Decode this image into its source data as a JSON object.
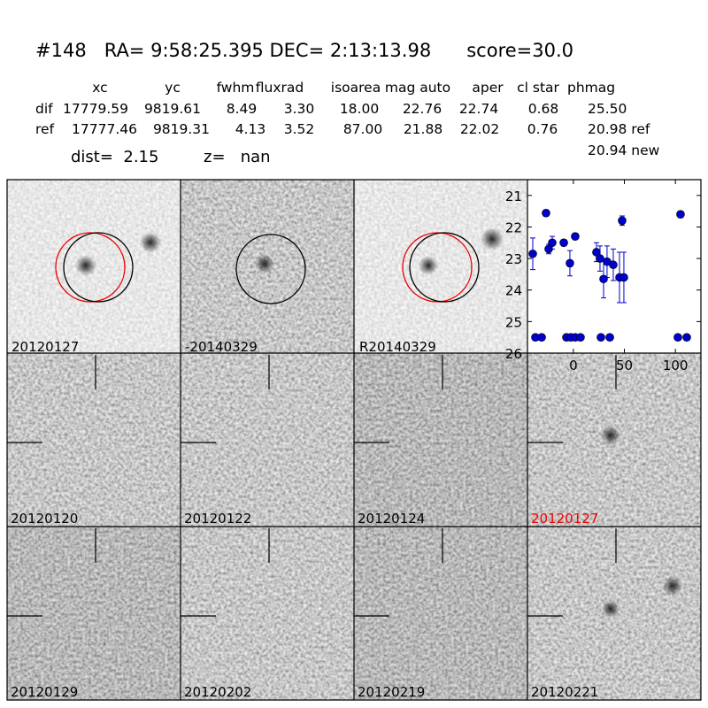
{
  "header": {
    "title": "#148   RA= 9:58:25.395 DEC= 2:13:13.98      score=30.0"
  },
  "table": {
    "columns": [
      "xc",
      "yc",
      "fwhm",
      "fluxrad",
      "isoarea",
      "mag auto",
      "aper",
      "cl star",
      "phmag"
    ],
    "rows": [
      [
        "dif",
        "17779.59",
        "9819.61",
        "8.49",
        "3.30",
        "18.00",
        "22.76",
        "22.74",
        "0.68",
        "25.50"
      ],
      [
        "ref",
        "17777.46",
        "9819.31",
        "4.13",
        "3.52",
        "87.00",
        "21.88",
        "22.02",
        "0.76",
        "20.98 ref"
      ]
    ],
    "extra": "20.94 new",
    "dist": "dist=  2.15",
    "z": "z=   nan"
  },
  "tiles": [
    "20120127",
    "-20140329",
    "R20140329",
    "20120120",
    "20120122",
    "20120124",
    "20120127",
    "20120129",
    "20120202",
    "20120219",
    "20120221"
  ],
  "chart_data": {
    "type": "scatter",
    "xlim": [
      -45,
      125
    ],
    "ylim": [
      26,
      20.5
    ],
    "xticks": [
      0,
      50,
      100
    ],
    "yticks": [
      21,
      22,
      23,
      24,
      25,
      26
    ],
    "series": [
      {
        "color": "#0000cc",
        "x": [
          -39.8,
          -26.8,
          -24.2,
          -20.7,
          -9.4,
          -3.4,
          1.8,
          22.6,
          26.1,
          29.6,
          33,
          39.1,
          45.2,
          49.5,
          47.8,
          105
        ],
        "values": [
          22.85,
          21.56,
          22.7,
          22.5,
          22.5,
          23.15,
          22.3,
          22.8,
          23.0,
          23.65,
          23.1,
          23.2,
          23.6,
          23.6,
          21.8,
          21.6
        ],
        "errors": [
          0.5,
          0.1,
          0.15,
          0.2,
          0.1,
          0.4,
          0.1,
          0.3,
          0.4,
          0.6,
          0.5,
          0.5,
          0.8,
          0.8,
          0.15,
          0.1
        ]
      },
      {
        "color": "#0000cc",
        "x": [
          -37.2,
          -31.1,
          -6.8,
          -2.6,
          1.8,
          7,
          27,
          35.7,
          102.4,
          111.1
        ],
        "values": [
          25.5,
          25.5,
          25.5,
          25.5,
          25.5,
          25.5,
          25.5,
          25.5,
          25.5,
          25.5
        ]
      }
    ]
  }
}
